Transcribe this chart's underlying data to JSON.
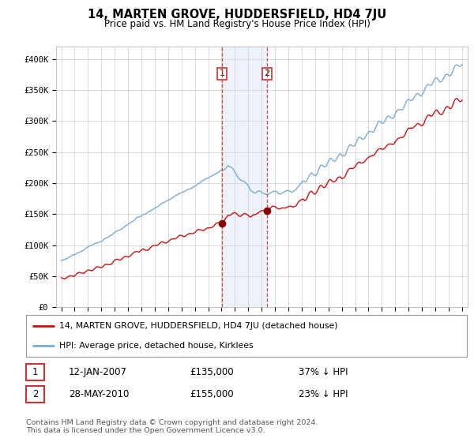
{
  "title": "14, MARTEN GROVE, HUDDERSFIELD, HD4 7JU",
  "subtitle": "Price paid vs. HM Land Registry's House Price Index (HPI)",
  "ylabel_ticks": [
    "£0",
    "£50K",
    "£100K",
    "£150K",
    "£200K",
    "£250K",
    "£300K",
    "£350K",
    "£400K"
  ],
  "ytick_values": [
    0,
    50000,
    100000,
    150000,
    200000,
    250000,
    300000,
    350000,
    400000
  ],
  "ylim": [
    0,
    420000
  ],
  "xlim_start": 1994.6,
  "xlim_end": 2025.4,
  "sale1_date": 2007.04,
  "sale1_price": 135000,
  "sale1_label": "1",
  "sale2_date": 2010.41,
  "sale2_price": 155000,
  "sale2_label": "2",
  "hpi_color": "#7aadd4",
  "price_color": "#cc1111",
  "sale_marker_color": "#880000",
  "vline_color": "#dd4444",
  "shade_color": "#c8d8ee",
  "legend_line1": "14, MARTEN GROVE, HUDDERSFIELD, HD4 7JU (detached house)",
  "legend_line2": "HPI: Average price, detached house, Kirklees",
  "annotation1_date": "12-JAN-2007",
  "annotation1_price": "£135,000",
  "annotation1_pct": "37% ↓ HPI",
  "annotation2_date": "28-MAY-2010",
  "annotation2_price": "£155,000",
  "annotation2_pct": "23% ↓ HPI",
  "footer": "Contains HM Land Registry data © Crown copyright and database right 2024.\nThis data is licensed under the Open Government Licence v3.0.",
  "background_color": "#ffffff",
  "grid_color": "#cccccc"
}
